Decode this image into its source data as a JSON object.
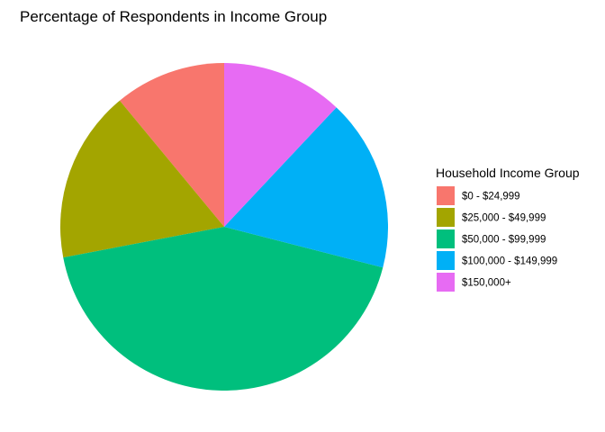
{
  "chart_data": {
    "type": "pie",
    "title": "Percentage of Respondents in Income Group",
    "legend": {
      "title": "Household Income Group",
      "placement": "right"
    },
    "slices": [
      {
        "label": "$0 - $24,999",
        "value": 11,
        "color": "#F8766D"
      },
      {
        "label": "$25,000 - $49,999",
        "value": 17,
        "color": "#A3A500"
      },
      {
        "label": "$50,000 - $99,999",
        "value": 43,
        "color": "#00BF7D"
      },
      {
        "label": "$100,000 - $149,999",
        "value": 17,
        "color": "#00B0F6"
      },
      {
        "label": "$150,000+",
        "value": 12,
        "color": "#E76BF3"
      }
    ]
  }
}
